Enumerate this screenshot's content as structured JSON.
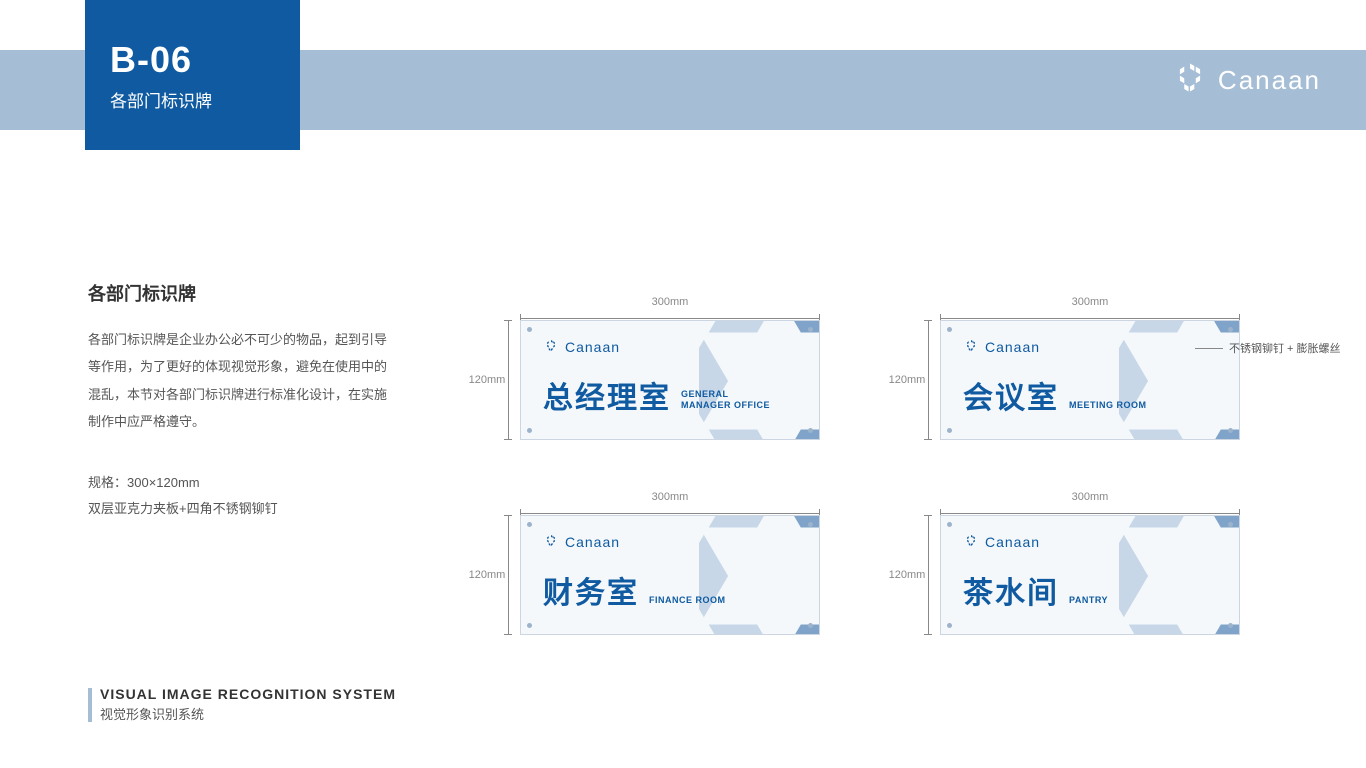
{
  "colors": {
    "band": "#a5bed6",
    "title_block": "#0f5aa0",
    "brand_blue": "#0f5aa0",
    "plate_bg": "#f4f8fb",
    "text_dark": "#333333",
    "text_mid": "#555555",
    "dim_gray": "#888888",
    "hex_light": "#c7d7e8",
    "hex_mid": "#7fa3c9",
    "hex_dark": "#0f5aa0",
    "footer_bar": "#a5bed6"
  },
  "header": {
    "code": "B-06",
    "subtitle": "各部门标识牌",
    "brand": "Canaan"
  },
  "description": {
    "title": "各部门标识牌",
    "body": "各部门标识牌是企业办公必不可少的物品，起到引导等作用，为了更好的体现视觉形象，避免在使用中的混乱，本节对各部门标识牌进行标准化设计，在实施制作中应严格遵守。",
    "spec_line1": "规格：300×120mm",
    "spec_line2": "双层亚克力夹板+四角不锈钢铆钉"
  },
  "dimensions": {
    "width_label": "300mm",
    "height_label": "120mm"
  },
  "signs": [
    {
      "logo": "Canaan",
      "cn": "总经理室",
      "en": "GENERAL\nMANAGER OFFICE"
    },
    {
      "logo": "Canaan",
      "cn": "会议室",
      "en": "MEETING ROOM"
    },
    {
      "logo": "Canaan",
      "cn": "财务室",
      "en": "FINANCE ROOM"
    },
    {
      "logo": "Canaan",
      "cn": "茶水间",
      "en": "PANTRY"
    }
  ],
  "callout": "不锈钢铆钉 + 膨胀螺丝",
  "footer": {
    "en": "VISUAL IMAGE RECOGNITION SYSTEM",
    "cn": "视觉形象识别系统"
  }
}
